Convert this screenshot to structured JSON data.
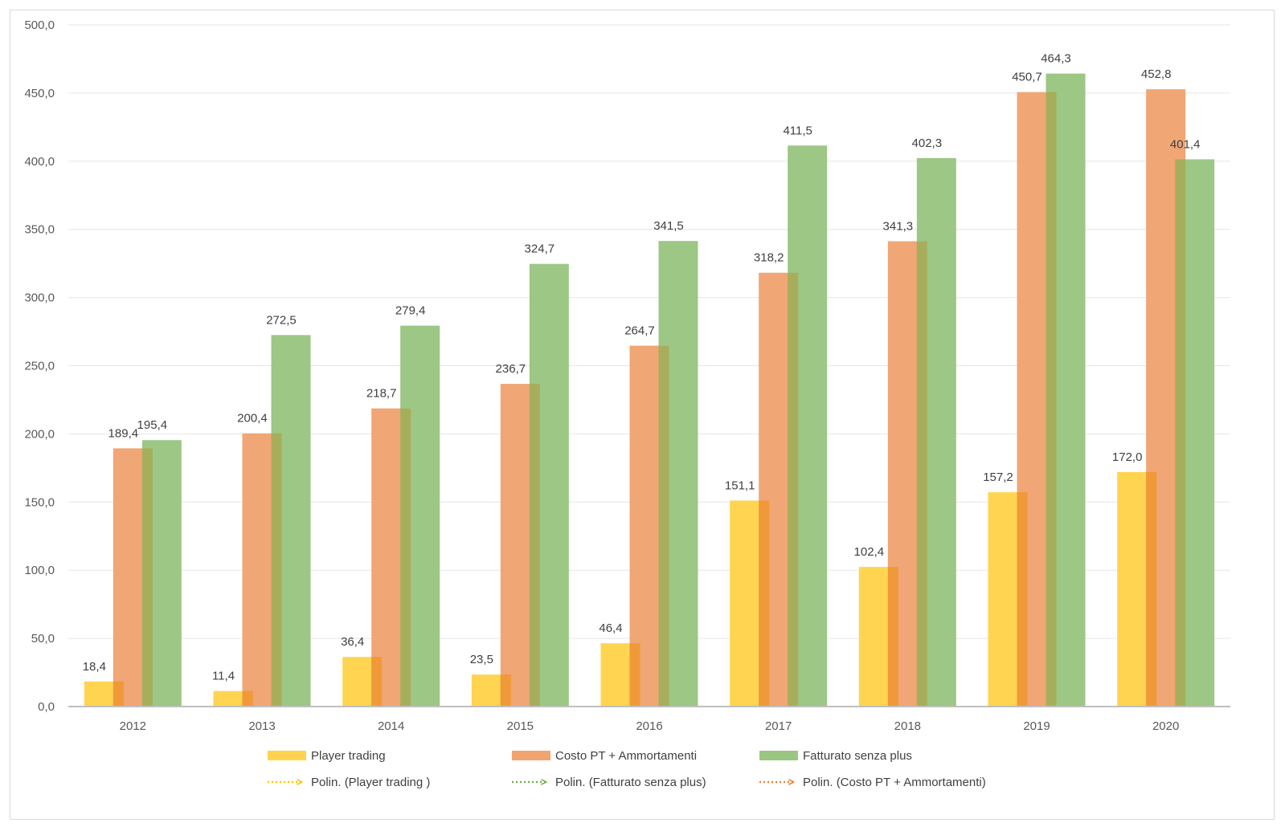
{
  "chart_data": {
    "type": "bar",
    "categories": [
      "2012",
      "2013",
      "2014",
      "2015",
      "2016",
      "2017",
      "2018",
      "2019",
      "2020"
    ],
    "series": [
      {
        "name": "Player trading",
        "color": "#FFD34E",
        "edge_color": "#F0962E",
        "values": [
          18.4,
          11.4,
          36.4,
          23.5,
          46.4,
          151.1,
          102.4,
          157.2,
          172.0
        ],
        "labels": [
          "18,4",
          "11,4",
          "36,4",
          "23,5",
          "46,4",
          "151,1",
          "102,4",
          "157,2",
          "172,0"
        ]
      },
      {
        "name": "Costo PT + Ammortamenti",
        "color": "#F0A472",
        "edge_color": "#A9A955",
        "values": [
          189.4,
          200.4,
          218.7,
          236.7,
          264.7,
          318.2,
          341.3,
          450.7,
          452.8
        ],
        "labels": [
          "189,4",
          "200,4",
          "218,7",
          "236,7",
          "264,7",
          "318,2",
          "341,3",
          "450,7",
          "452,8"
        ]
      },
      {
        "name": "Fatturato senza plus",
        "color": "#9BC682",
        "values": [
          195.4,
          272.5,
          279.4,
          324.7,
          341.5,
          411.5,
          402.3,
          464.3,
          401.4
        ],
        "labels": [
          "195,4",
          "272,5",
          "279,4",
          "324,7",
          "341,5",
          "411,5",
          "402,3",
          "464,3",
          "401,4"
        ]
      }
    ],
    "trendlines": [
      {
        "name": "Polin. (Player trading )",
        "series": "Player trading",
        "type": "polynomial",
        "color": "#FFC000"
      },
      {
        "name": "Polin. (Fatturato senza plus)",
        "series": "Fatturato senza plus",
        "type": "polynomial",
        "color": "#70AD47"
      },
      {
        "name": "Polin. (Costo PT + Ammortamenti)",
        "series": "Costo PT + Ammortamenti",
        "type": "polynomial",
        "color": "#ED7D31"
      }
    ],
    "ylim": [
      0,
      500
    ],
    "yticks": [
      "0,0",
      "50,0",
      "100,0",
      "150,0",
      "200,0",
      "250,0",
      "300,0",
      "350,0",
      "400,0",
      "450,0",
      "500,0"
    ],
    "grid": true,
    "legend_position": "bottom"
  }
}
